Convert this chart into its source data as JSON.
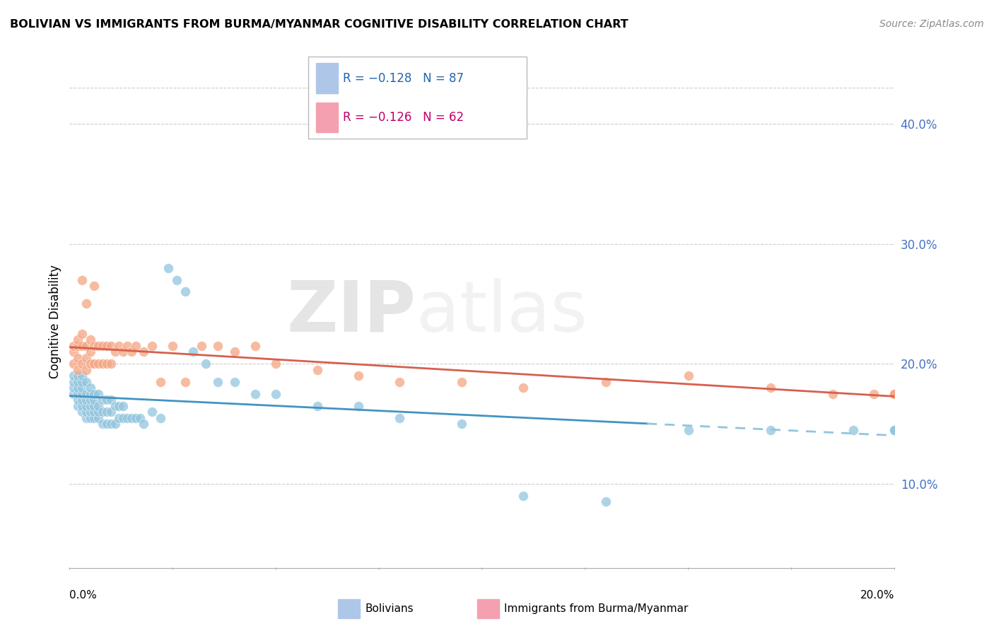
{
  "title": "BOLIVIAN VS IMMIGRANTS FROM BURMA/MYANMAR COGNITIVE DISABILITY CORRELATION CHART",
  "source": "Source: ZipAtlas.com",
  "ylabel": "Cognitive Disability",
  "ytick_labels": [
    "10.0%",
    "20.0%",
    "30.0%",
    "40.0%"
  ],
  "ytick_values": [
    0.1,
    0.2,
    0.3,
    0.4
  ],
  "xmin": 0.0,
  "xmax": 0.2,
  "ymin": 0.03,
  "ymax": 0.44,
  "bolivians_color": "#92c5de",
  "burma_color": "#f4a582",
  "trendline_bolivians_solid_color": "#4393c3",
  "trendline_bolivians_dashed_color": "#92c5de",
  "trendline_burma_color": "#d6604d",
  "watermark_text": "ZIPatlas",
  "bolivians_x": [
    0.001,
    0.001,
    0.001,
    0.001,
    0.002,
    0.002,
    0.002,
    0.002,
    0.002,
    0.002,
    0.003,
    0.003,
    0.003,
    0.003,
    0.003,
    0.003,
    0.003,
    0.004,
    0.004,
    0.004,
    0.004,
    0.004,
    0.004,
    0.005,
    0.005,
    0.005,
    0.005,
    0.005,
    0.005,
    0.006,
    0.006,
    0.006,
    0.006,
    0.006,
    0.007,
    0.007,
    0.007,
    0.007,
    0.008,
    0.008,
    0.008,
    0.009,
    0.009,
    0.009,
    0.01,
    0.01,
    0.01,
    0.011,
    0.011,
    0.012,
    0.012,
    0.013,
    0.013,
    0.014,
    0.015,
    0.016,
    0.017,
    0.018,
    0.02,
    0.022,
    0.024,
    0.026,
    0.028,
    0.03,
    0.033,
    0.036,
    0.04,
    0.045,
    0.05,
    0.06,
    0.07,
    0.08,
    0.095,
    0.11,
    0.13,
    0.15,
    0.17,
    0.19,
    0.2,
    0.2,
    0.2,
    0.2,
    0.2,
    0.2,
    0.2,
    0.2,
    0.2
  ],
  "bolivians_y": [
    0.175,
    0.18,
    0.185,
    0.19,
    0.165,
    0.17,
    0.175,
    0.18,
    0.185,
    0.19,
    0.16,
    0.165,
    0.17,
    0.175,
    0.18,
    0.185,
    0.19,
    0.155,
    0.16,
    0.165,
    0.17,
    0.175,
    0.185,
    0.155,
    0.16,
    0.165,
    0.17,
    0.175,
    0.18,
    0.155,
    0.16,
    0.165,
    0.17,
    0.175,
    0.155,
    0.16,
    0.165,
    0.175,
    0.15,
    0.16,
    0.17,
    0.15,
    0.16,
    0.17,
    0.15,
    0.16,
    0.17,
    0.15,
    0.165,
    0.155,
    0.165,
    0.155,
    0.165,
    0.155,
    0.155,
    0.155,
    0.155,
    0.15,
    0.16,
    0.155,
    0.28,
    0.27,
    0.26,
    0.21,
    0.2,
    0.185,
    0.185,
    0.175,
    0.175,
    0.165,
    0.165,
    0.155,
    0.15,
    0.09,
    0.085,
    0.145,
    0.145,
    0.145,
    0.145,
    0.145,
    0.145,
    0.145,
    0.145,
    0.145,
    0.145,
    0.145,
    0.145
  ],
  "burma_x": [
    0.001,
    0.001,
    0.001,
    0.002,
    0.002,
    0.002,
    0.002,
    0.003,
    0.003,
    0.003,
    0.003,
    0.004,
    0.004,
    0.004,
    0.004,
    0.005,
    0.005,
    0.005,
    0.006,
    0.006,
    0.006,
    0.007,
    0.007,
    0.008,
    0.008,
    0.009,
    0.009,
    0.01,
    0.01,
    0.011,
    0.012,
    0.013,
    0.014,
    0.015,
    0.016,
    0.018,
    0.02,
    0.022,
    0.025,
    0.028,
    0.032,
    0.036,
    0.04,
    0.045,
    0.05,
    0.06,
    0.07,
    0.08,
    0.095,
    0.11,
    0.13,
    0.15,
    0.17,
    0.185,
    0.195,
    0.2,
    0.2,
    0.2,
    0.2,
    0.2,
    0.2,
    0.2
  ],
  "burma_y": [
    0.2,
    0.21,
    0.215,
    0.195,
    0.205,
    0.215,
    0.22,
    0.2,
    0.215,
    0.225,
    0.27,
    0.195,
    0.205,
    0.215,
    0.25,
    0.2,
    0.21,
    0.22,
    0.2,
    0.215,
    0.265,
    0.2,
    0.215,
    0.2,
    0.215,
    0.2,
    0.215,
    0.2,
    0.215,
    0.21,
    0.215,
    0.21,
    0.215,
    0.21,
    0.215,
    0.21,
    0.215,
    0.185,
    0.215,
    0.185,
    0.215,
    0.215,
    0.21,
    0.215,
    0.2,
    0.195,
    0.19,
    0.185,
    0.185,
    0.18,
    0.185,
    0.19,
    0.18,
    0.175,
    0.175,
    0.175,
    0.175,
    0.175,
    0.175,
    0.175,
    0.175,
    0.175
  ],
  "trendline_solid_end": 0.14,
  "legend_r1": "R = −0.128",
  "legend_n1": "N = 87",
  "legend_r2": "R = −0.126",
  "legend_n2": "N = 62"
}
